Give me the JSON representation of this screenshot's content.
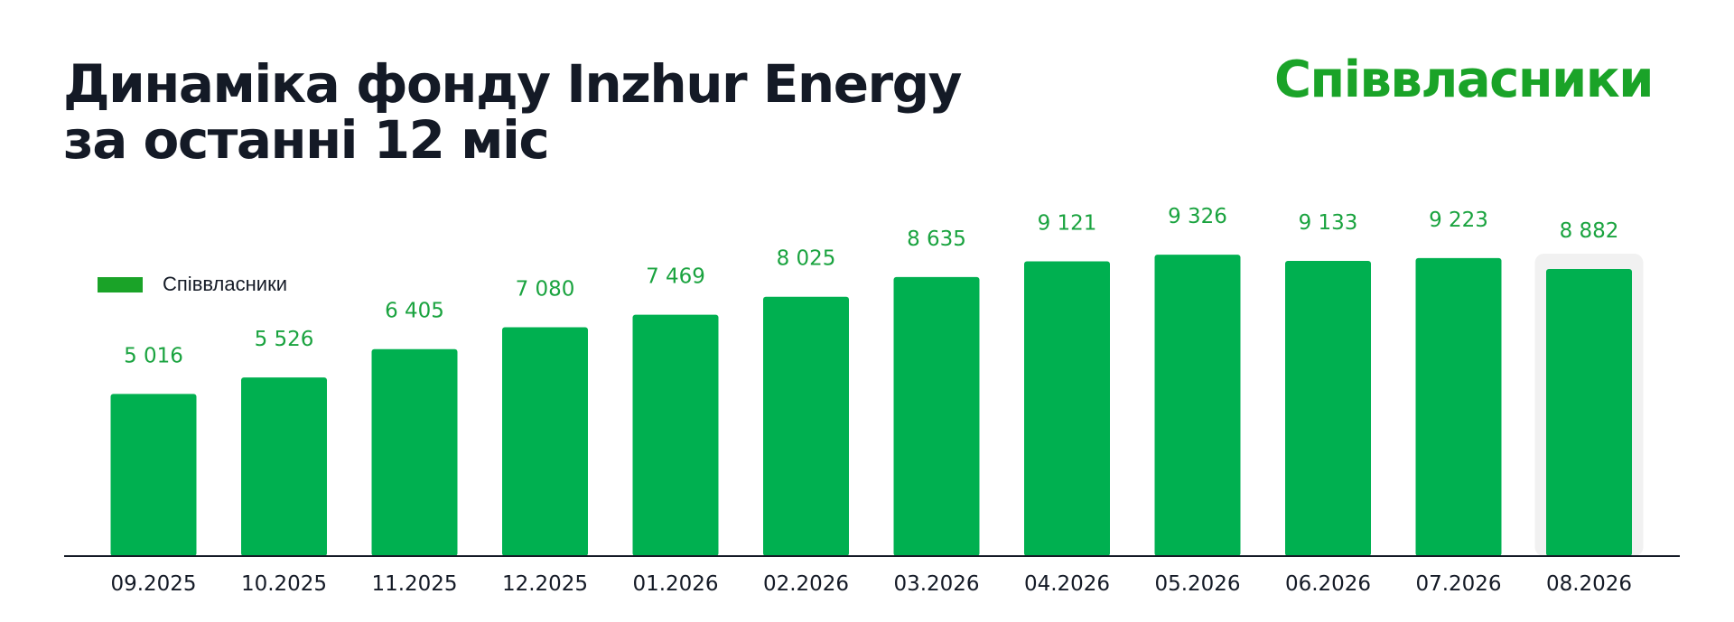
{
  "header": {
    "title_line1": "Динаміка фонду Inzhur Energy",
    "title_line2": "за останні 12 міс",
    "brand": "Співвласники"
  },
  "colors": {
    "bar": "#00b050",
    "label": "#1aa33f",
    "brand": "#1aa328",
    "highlight": "#f1f1f1",
    "text": "#141a26"
  },
  "chart_data": {
    "type": "bar",
    "title": "",
    "xlabel": "",
    "ylabel": "",
    "categories": [
      "09.2025",
      "10.2025",
      "11.2025",
      "12.2025",
      "01.2026",
      "02.2026",
      "03.2026",
      "04.2026",
      "05.2026",
      "06.2026",
      "07.2026",
      "08.2026"
    ],
    "series": [
      {
        "name": "Співвласники",
        "values": [
          5016,
          5526,
          6405,
          7080,
          7469,
          8025,
          8635,
          9121,
          9326,
          9133,
          9223,
          8882
        ],
        "labels": [
          "5 016",
          "5 526",
          "6 405",
          "7 080",
          "7 469",
          "8 025",
          "8 635",
          "9 121",
          "9 326",
          "9 133",
          "9 223",
          "8 882"
        ]
      }
    ],
    "highlighted_category": "08.2026",
    "legend_position": "top-left",
    "grid": false
  }
}
